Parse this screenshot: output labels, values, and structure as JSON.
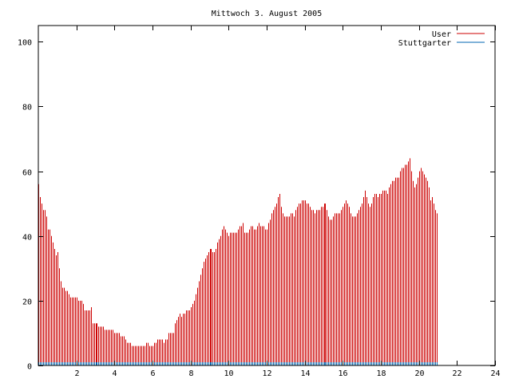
{
  "chart_data": {
    "type": "bar",
    "title": "Mittwoch 3. August 2005",
    "xlabel": "",
    "ylabel": "",
    "xlim": [
      0,
      24
    ],
    "ylim": [
      0,
      105
    ],
    "x_ticks": [
      2,
      4,
      6,
      8,
      10,
      12,
      14,
      16,
      18,
      20,
      22,
      24
    ],
    "y_ticks": [
      0,
      20,
      40,
      60,
      80,
      100
    ],
    "legend_position": "top-right",
    "grid": false,
    "series": [
      {
        "name": "User",
        "color": "#cc0000",
        "samples_per_hour": 12,
        "values": [
          56,
          52,
          50,
          48,
          48,
          46,
          42,
          42,
          40,
          38,
          36,
          34,
          35,
          30,
          26,
          24,
          24,
          23,
          23,
          22,
          21,
          21,
          21,
          21,
          21,
          20,
          20,
          20,
          19,
          17,
          17,
          17,
          17,
          18,
          13,
          13,
          13,
          13,
          12,
          12,
          12,
          12,
          11,
          11,
          11,
          11,
          11,
          11,
          10,
          10,
          10,
          10,
          9,
          9,
          9,
          8,
          7,
          7,
          7,
          6,
          6,
          6,
          6,
          6,
          6,
          6,
          6,
          6,
          7,
          7,
          6,
          6,
          6,
          7,
          7,
          8,
          8,
          8,
          8,
          7,
          8,
          8,
          10,
          10,
          10,
          10,
          13,
          14,
          15,
          16,
          15,
          16,
          16,
          17,
          17,
          17,
          18,
          19,
          20,
          22,
          24,
          26,
          28,
          30,
          32,
          33,
          34,
          35,
          36,
          36,
          35,
          35,
          36,
          38,
          39,
          40,
          42,
          43,
          42,
          41,
          40,
          41,
          41,
          41,
          41,
          41,
          42,
          43,
          43,
          44,
          41,
          41,
          41,
          42,
          43,
          43,
          42,
          42,
          43,
          44,
          43,
          43,
          43,
          42,
          42,
          44,
          45,
          47,
          48,
          49,
          50,
          52,
          53,
          49,
          47,
          46,
          46,
          46,
          46,
          47,
          47,
          46,
          48,
          49,
          50,
          50,
          51,
          51,
          51,
          50,
          50,
          49,
          48,
          48,
          47,
          48,
          48,
          48,
          49,
          49,
          50,
          50,
          48,
          46,
          45,
          45,
          46,
          47,
          47,
          47,
          47,
          48,
          49,
          50,
          51,
          50,
          49,
          47,
          46,
          46,
          46,
          47,
          48,
          49,
          50,
          52,
          54,
          52,
          50,
          49,
          50,
          52,
          53,
          53,
          52,
          53,
          53,
          54,
          54,
          54,
          53,
          55,
          56,
          57,
          57,
          58,
          58,
          58,
          60,
          61,
          61,
          62,
          62,
          63,
          64,
          60,
          57,
          55,
          56,
          58,
          60,
          61,
          60,
          59,
          58,
          57,
          55,
          51,
          52,
          50,
          48,
          47
        ]
      },
      {
        "name": "Stuttgarter",
        "color": "#0066b3",
        "samples_per_hour": 12,
        "values": [
          1,
          1,
          1,
          1,
          1,
          1,
          1,
          1,
          1,
          1,
          1,
          1,
          1,
          1,
          1,
          1,
          1,
          1,
          1,
          1,
          1,
          1,
          1,
          1,
          1,
          1,
          1,
          1,
          1,
          1,
          1,
          1,
          1,
          1,
          1,
          1,
          1,
          1,
          1,
          1,
          1,
          1,
          1,
          1,
          1,
          1,
          1,
          1,
          1,
          1,
          1,
          1,
          1,
          1,
          1,
          1,
          1,
          1,
          1,
          1,
          1,
          1,
          1,
          1,
          1,
          1,
          1,
          1,
          1,
          1,
          1,
          1,
          1,
          1,
          1,
          1,
          1,
          1,
          1,
          1,
          1,
          1,
          1,
          1,
          1,
          1,
          1,
          1,
          1,
          1,
          1,
          1,
          1,
          1,
          1,
          1,
          1,
          1,
          1,
          1,
          1,
          1,
          1,
          1,
          1,
          1,
          1,
          1,
          1,
          1,
          1,
          1,
          1,
          1,
          1,
          1,
          1,
          1,
          1,
          1,
          1,
          1,
          1,
          1,
          1,
          1,
          1,
          1,
          1,
          1,
          1,
          1,
          1,
          1,
          1,
          1,
          1,
          1,
          1,
          1,
          1,
          1,
          1,
          1,
          1,
          1,
          1,
          1,
          1,
          1,
          1,
          1,
          1,
          1,
          1,
          1,
          1,
          1,
          1,
          1,
          1,
          1,
          1,
          1,
          1,
          1,
          1,
          1,
          1,
          1,
          1,
          1,
          1,
          1,
          1,
          1,
          1,
          1,
          1,
          1,
          1,
          1,
          1,
          1,
          1,
          1,
          1,
          1,
          1,
          1,
          1,
          1,
          1,
          1,
          1,
          1,
          1,
          1,
          1,
          1,
          1,
          1,
          1,
          1,
          1,
          1,
          1,
          1,
          1,
          1,
          1,
          1,
          1,
          1,
          1,
          1,
          1,
          1,
          1,
          1,
          1,
          1,
          1,
          1,
          1,
          1,
          1,
          1,
          1,
          1,
          1,
          1,
          1,
          1,
          1,
          1,
          1,
          1,
          1,
          1,
          1,
          1,
          1,
          1,
          1,
          1,
          1,
          1,
          1,
          1,
          1,
          1
        ]
      }
    ]
  }
}
